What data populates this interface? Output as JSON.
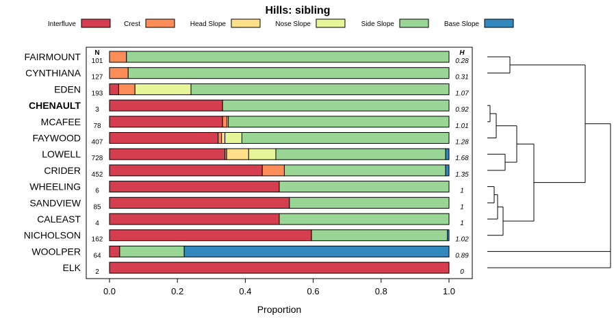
{
  "chart_data": {
    "type": "bar",
    "subtype": "horizontal-stacked-proportion",
    "title": "Hills: sibling",
    "xlabel": "Proportion",
    "xlim": [
      0,
      1
    ],
    "xticks": [
      0.0,
      0.2,
      0.4,
      0.6,
      0.8,
      1.0
    ],
    "xtick_labels": [
      "0.0",
      "0.2",
      "0.4",
      "0.6",
      "0.8",
      "1.0"
    ],
    "n_header": "N",
    "h_header": "H",
    "legend_position": "top",
    "categories": [
      "Interfluve",
      "Crest",
      "Head Slope",
      "Nose Slope",
      "Side Slope",
      "Base Slope"
    ],
    "colors": [
      "#d53e4f",
      "#fc8d59",
      "#fee08b",
      "#e6f598",
      "#99d594",
      "#3288bd"
    ],
    "rows": [
      {
        "name": "FAIRMOUNT",
        "bold": false,
        "n": "101",
        "h": "0.28",
        "values": [
          0,
          0.05,
          0,
          0,
          0.95,
          0
        ]
      },
      {
        "name": "CYNTHIANA",
        "bold": false,
        "n": "127",
        "h": "0.31",
        "values": [
          0,
          0.055,
          0,
          0,
          0.945,
          0
        ]
      },
      {
        "name": "EDEN",
        "bold": false,
        "n": "193",
        "h": "1.07",
        "values": [
          0.027,
          0.048,
          0,
          0.165,
          0.76,
          0
        ]
      },
      {
        "name": "CHENAULT",
        "bold": true,
        "n": "3",
        "h": "0.92",
        "values": [
          0.333,
          0,
          0,
          0,
          0.667,
          0
        ]
      },
      {
        "name": "MCAFEE",
        "bold": false,
        "n": "78",
        "h": "1.01",
        "values": [
          0.333,
          0.013,
          0.004,
          0,
          0.65,
          0
        ]
      },
      {
        "name": "FAYWOOD",
        "bold": false,
        "n": "407",
        "h": "1.28",
        "values": [
          0.32,
          0.01,
          0.01,
          0.05,
          0.61,
          0
        ]
      },
      {
        "name": "LOWELL",
        "bold": false,
        "n": "728",
        "h": "1.68",
        "values": [
          0.34,
          0.005,
          0.065,
          0.08,
          0.5,
          0.01
        ]
      },
      {
        "name": "CRIDER",
        "bold": false,
        "n": "452",
        "h": "1.35",
        "values": [
          0.45,
          0.065,
          0,
          0,
          0.475,
          0.01
        ]
      },
      {
        "name": "WHEELING",
        "bold": false,
        "n": "6",
        "h": "1",
        "values": [
          0.5,
          0,
          0,
          0,
          0.5,
          0
        ]
      },
      {
        "name": "SANDVIEW",
        "bold": false,
        "n": "85",
        "h": "1",
        "values": [
          0.53,
          0,
          0,
          0,
          0.47,
          0
        ]
      },
      {
        "name": "CALEAST",
        "bold": false,
        "n": "4",
        "h": "1",
        "values": [
          0.5,
          0,
          0,
          0,
          0.5,
          0
        ]
      },
      {
        "name": "NICHOLSON",
        "bold": false,
        "n": "162",
        "h": "1.02",
        "values": [
          0.595,
          0,
          0,
          0,
          0.4,
          0.005
        ]
      },
      {
        "name": "WOOLPER",
        "bold": false,
        "n": "64",
        "h": "0.89",
        "values": [
          0.03,
          0,
          0,
          0,
          0.19,
          0.78
        ]
      },
      {
        "name": "ELK",
        "bold": false,
        "n": "2",
        "h": "0",
        "values": [
          1,
          0,
          0,
          0,
          0,
          0
        ]
      }
    ]
  }
}
